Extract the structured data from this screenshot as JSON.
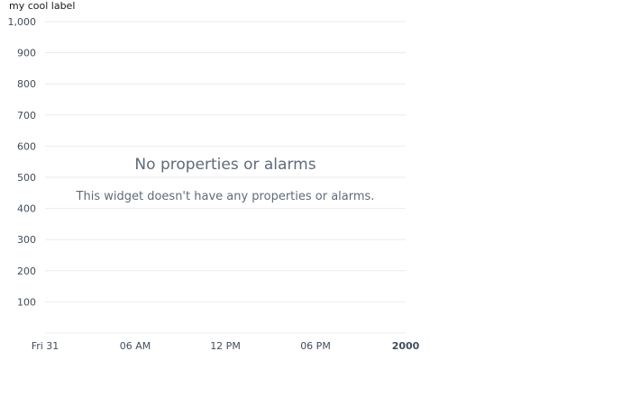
{
  "widget": {
    "y_axis_label": "my cool label",
    "empty_state": {
      "title": "No properties or alarms",
      "description": "This widget doesn't have any properties or alarms."
    }
  },
  "chart_data": {
    "type": "line",
    "ylabel": "my cool label",
    "ylim": [
      0,
      1000
    ],
    "y_ticks": [
      "1,000",
      "900",
      "800",
      "700",
      "600",
      "500",
      "400",
      "300",
      "200",
      "100"
    ],
    "y_tick_values": [
      1000,
      900,
      800,
      700,
      600,
      500,
      400,
      300,
      200,
      100
    ],
    "x_ticks": [
      {
        "label": "Fri 31",
        "bold": false
      },
      {
        "label": "06 AM",
        "bold": false
      },
      {
        "label": "12 PM",
        "bold": false
      },
      {
        "label": "06 PM",
        "bold": false
      },
      {
        "label": "2000",
        "bold": true
      }
    ],
    "series": [],
    "grid": true,
    "legend": "none"
  },
  "colors": {
    "grid": "#e9ebed",
    "text": "#16191f",
    "tick_text": "#414d5c",
    "empty_text": "#5f6b7a"
  }
}
